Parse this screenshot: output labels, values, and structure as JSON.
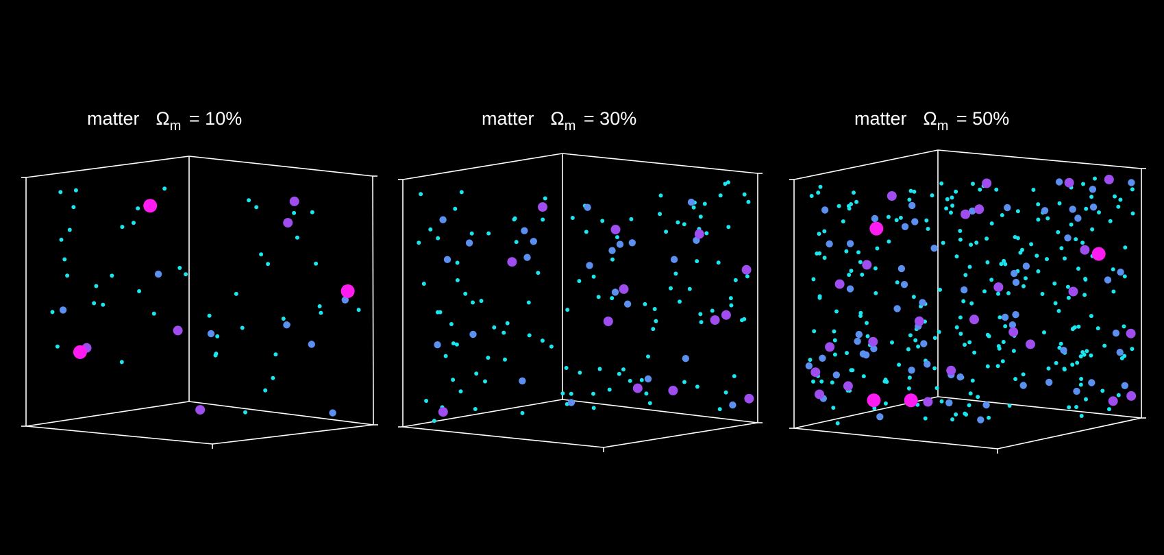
{
  "colors": {
    "background": "#000000",
    "frame": "#ffffff",
    "small_point": "#19e6ee",
    "medium_point": "#5b8ff0",
    "large_point": "#a04df0",
    "largest_point": "#ff1cf0"
  },
  "panels": [
    {
      "word": "matter",
      "symbol": "Ω",
      "subscript": "m",
      "value_text": "= 10%",
      "omega_m_percent": 10
    },
    {
      "word": "matter",
      "symbol": "Ω",
      "subscript": "m",
      "value_text": "= 30%",
      "omega_m_percent": 30
    },
    {
      "word": "matter",
      "symbol": "Ω",
      "subscript": "m",
      "value_text": "= 50%",
      "omega_m_percent": 50
    }
  ]
}
